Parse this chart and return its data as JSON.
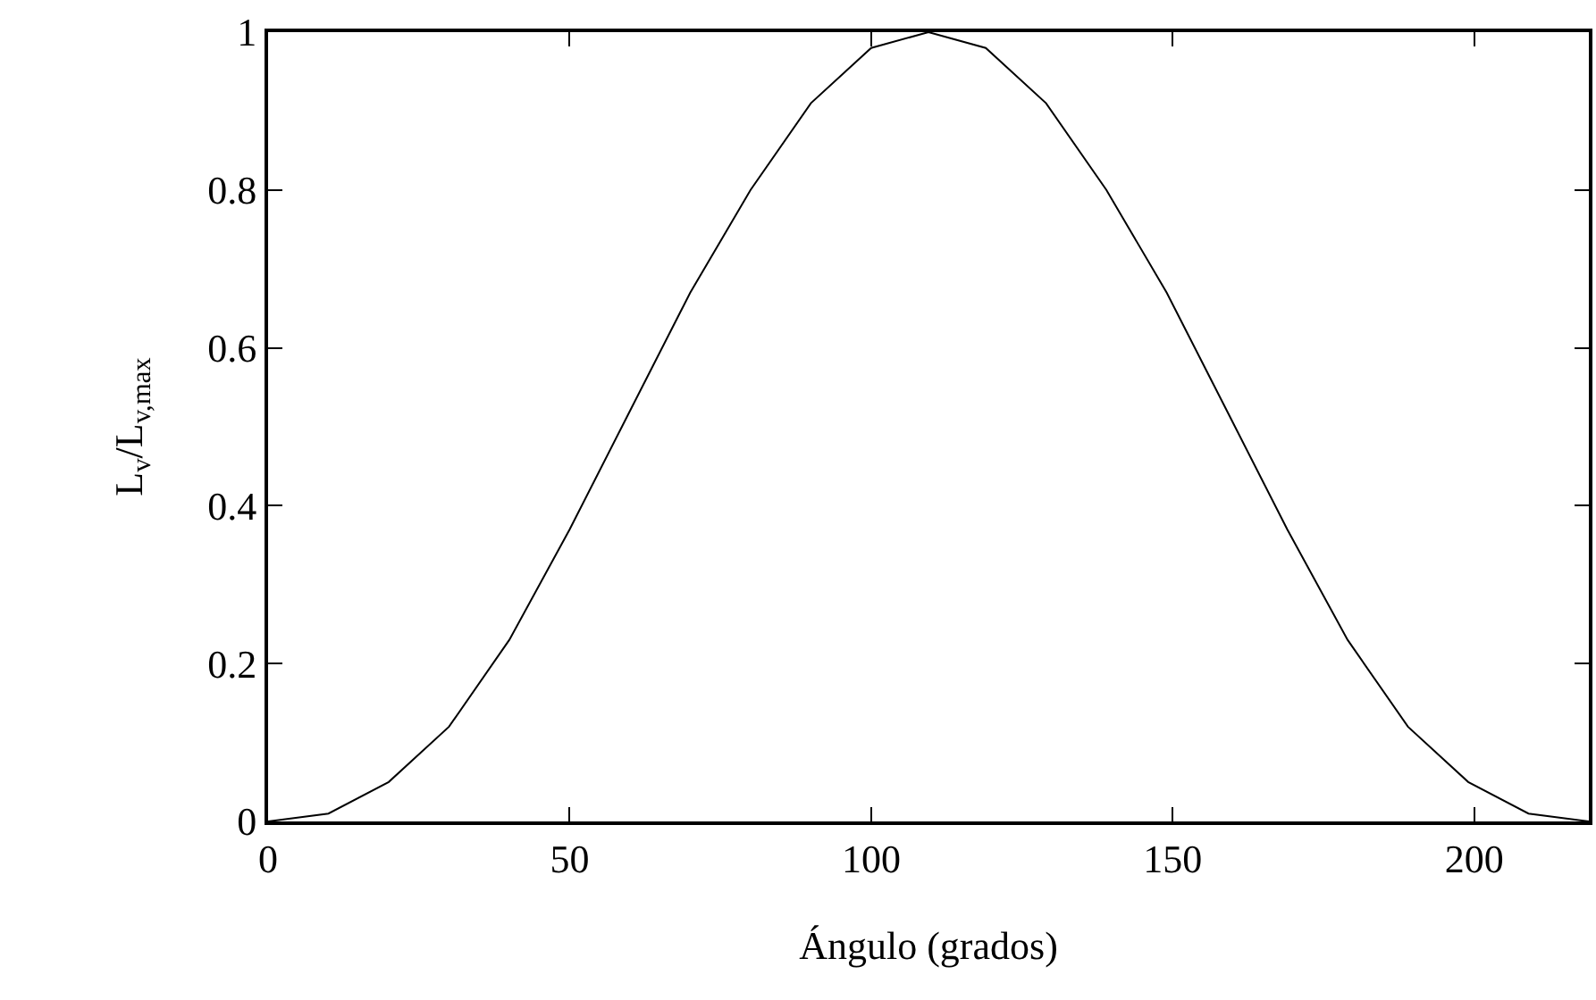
{
  "chart_data": {
    "type": "line",
    "xlabel": "Ángulo (grados)",
    "ylabel": "L$_{v}$/L$_{v,max}$",
    "x": [
      0,
      10,
      20,
      30,
      40,
      50,
      60,
      70,
      80,
      90,
      100,
      109.5,
      119,
      129,
      139,
      149,
      159,
      169,
      179,
      189,
      199,
      209,
      219
    ],
    "series": [
      {
        "color": "#000000",
        "values": [
          0,
          0.01,
          0.05,
          0.12,
          0.23,
          0.37,
          0.52,
          0.67,
          0.8,
          0.91,
          0.98,
          1,
          0.98,
          0.91,
          0.8,
          0.67,
          0.52,
          0.37,
          0.23,
          0.12,
          0.05,
          0.01,
          0
        ]
      }
    ],
    "xlim": [
      0,
      219
    ],
    "xticks": [
      0,
      50,
      100,
      150,
      200
    ],
    "ylim": [
      0,
      1
    ],
    "yticks": [
      0,
      0.2,
      0.4,
      0.6,
      0.8,
      1
    ],
    "grid": false,
    "marker": "none",
    "line_style": "solid"
  }
}
